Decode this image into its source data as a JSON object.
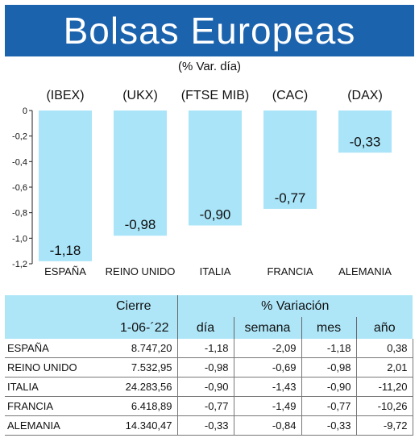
{
  "title": "Bolsas Europeas",
  "subtitle": "(% Var. día)",
  "chart_data": {
    "type": "bar",
    "categories": [
      "ESPAÑA",
      "REINO UNIDO",
      "ITALIA",
      "FRANCIA",
      "ALEMANIA"
    ],
    "index_labels": [
      "(IBEX)",
      "(UKX)",
      "(FTSE MIB)",
      "(CAC)",
      "(DAX)"
    ],
    "values": [
      -1.18,
      -0.98,
      -0.9,
      -0.77,
      -0.33
    ],
    "value_labels": [
      "-1,18",
      "-0,98",
      "-0,90",
      "-0,77",
      "-0,33"
    ],
    "ylim": [
      -1.2,
      0
    ],
    "yticks": [
      0,
      -0.2,
      -0.4,
      -0.6,
      -0.8,
      -1.0,
      -1.2
    ],
    "ytick_labels": [
      "0",
      "-0,2",
      "-0,4",
      "-0,6",
      "-0,8",
      "-1,0",
      "-1,2"
    ],
    "bar_color": "#a9e4f8"
  },
  "table": {
    "group_headers": {
      "cierre": "Cierre",
      "variacion": "% Variación"
    },
    "columns": {
      "date": "1-06-´22",
      "dia": "día",
      "semana": "semana",
      "mes": "mes",
      "ano": "año"
    },
    "header_color": "#aee6f8",
    "rows": [
      {
        "country": "ESPAÑA",
        "cierre": "8.747,20",
        "dia": "-1,18",
        "semana": "-2,09",
        "mes": "-1,18",
        "ano": "0,38"
      },
      {
        "country": "REINO UNIDO",
        "cierre": "7.532,95",
        "dia": "-0,98",
        "semana": "-0,69",
        "mes": "-0,98",
        "ano": "2,01"
      },
      {
        "country": "ITALIA",
        "cierre": "24.283,56",
        "dia": "-0,90",
        "semana": "-1,43",
        "mes": "-0,90",
        "ano": "-11,20"
      },
      {
        "country": "FRANCIA",
        "cierre": "6.418,89",
        "dia": "-0,77",
        "semana": "-1,49",
        "mes": "-0,77",
        "ano": "-10,26"
      },
      {
        "country": "ALEMANIA",
        "cierre": "14.340,47",
        "dia": "-0,33",
        "semana": "-0,84",
        "mes": "-0,33",
        "ano": "-9,72"
      }
    ]
  }
}
